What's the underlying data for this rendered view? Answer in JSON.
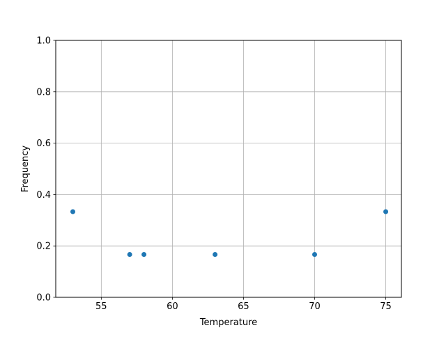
{
  "chart_data": {
    "type": "scatter",
    "title": "",
    "xlabel": "Temperature",
    "ylabel": "Frequency",
    "x": [
      53,
      57,
      58,
      63,
      70,
      75
    ],
    "y": [
      0.3333,
      0.1667,
      0.1667,
      0.1667,
      0.1667,
      0.3333
    ],
    "xlim": [
      51.8,
      76.1
    ],
    "ylim": [
      0.0,
      1.0
    ],
    "xticks": [
      "55",
      "60",
      "65",
      "70",
      "75"
    ],
    "xtick_values": [
      55,
      60,
      65,
      70,
      75
    ],
    "yticks": [
      "0.0",
      "0.2",
      "0.4",
      "0.6",
      "0.8",
      "1.0"
    ],
    "ytick_values": [
      0,
      0.2,
      0.4,
      0.6,
      0.8,
      1.0
    ],
    "grid": true,
    "marker_color": "#1f77b4"
  }
}
